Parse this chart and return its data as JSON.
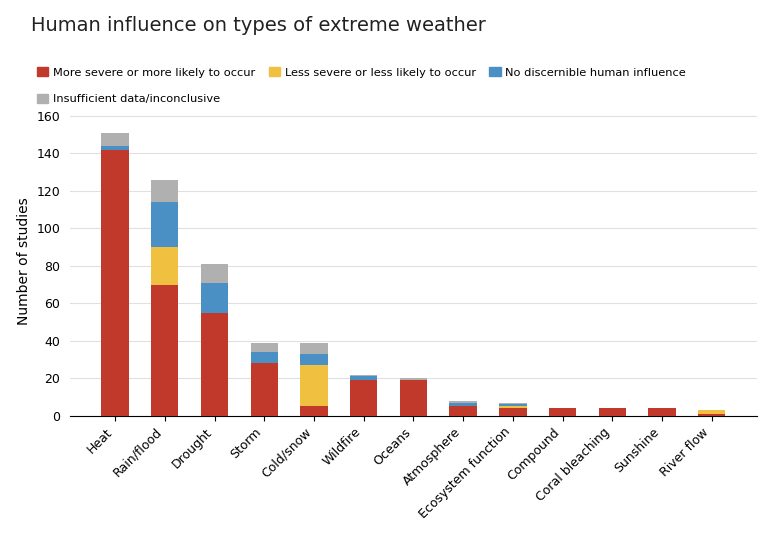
{
  "title": "Human influence on types of extreme weather",
  "ylabel": "Number of studies",
  "categories": [
    "Heat",
    "Rain/flood",
    "Drought",
    "Storm",
    "Cold/snow",
    "Wildfire",
    "Oceans",
    "Atmosphere",
    "Ecosystem function",
    "Compound",
    "Coral bleaching",
    "Sunshine",
    "River flow"
  ],
  "series": {
    "more_severe": [
      142,
      70,
      55,
      28,
      5,
      19,
      19,
      5,
      4,
      4,
      4,
      4,
      1
    ],
    "less_severe": [
      0,
      20,
      0,
      0,
      22,
      0,
      0,
      0,
      1,
      0,
      0,
      0,
      2
    ],
    "no_influence": [
      2,
      24,
      16,
      6,
      6,
      2,
      0,
      2,
      1,
      0,
      0,
      0,
      0
    ],
    "insufficient": [
      7,
      12,
      10,
      5,
      6,
      1,
      1,
      1,
      1,
      0,
      0,
      0,
      0
    ]
  },
  "colors": {
    "more_severe": "#c0392b",
    "less_severe": "#f0c040",
    "no_influence": "#4a90c4",
    "insufficient": "#b0b0b0"
  },
  "legend_labels": {
    "more_severe": "More severe or more likely to occur",
    "less_severe": "Less severe or less likely to occur",
    "no_influence": "No discernible human influence",
    "insufficient": "Insufficient data/inconclusive"
  },
  "ylim": [
    0,
    165
  ],
  "yticks": [
    0,
    20,
    40,
    60,
    80,
    100,
    120,
    140,
    160
  ],
  "background_color": "#ffffff",
  "grid_color": "#e0e0e0",
  "title_fontsize": 14,
  "axis_fontsize": 10,
  "tick_fontsize": 9
}
